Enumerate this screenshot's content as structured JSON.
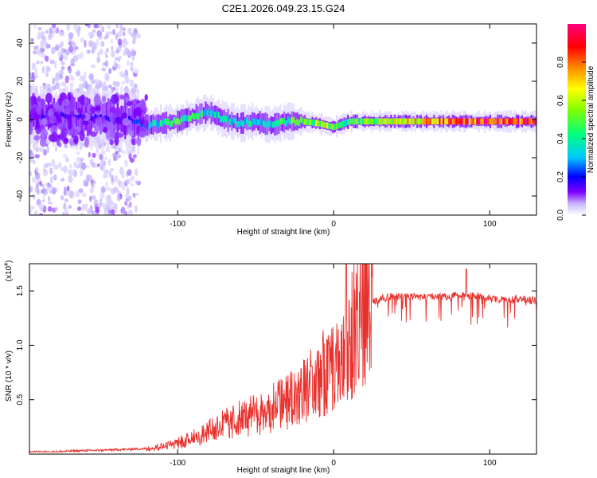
{
  "title": "C2E1.2026.049.23.15.G24",
  "colors": {
    "snr_line": "#e8302c",
    "axis": "#000000",
    "background": "#ffffff"
  },
  "chart_data": [
    {
      "type": "heatmap",
      "name": "spectrogram",
      "xlabel": "Height of straight line (km)",
      "ylabel": "Frequency (Hz)",
      "xlim": [
        -195,
        130
      ],
      "ylim": [
        -50,
        50
      ],
      "xticks": [
        -100,
        0,
        100
      ],
      "yticks": [
        -40,
        -20,
        0,
        20,
        40
      ],
      "xtick_labels": [
        "-100",
        "0",
        "100"
      ],
      "ytick_labels": [
        "-40",
        "-20",
        "0",
        "20",
        "40"
      ],
      "colorbar": {
        "label": "Normalized spectral amplitude",
        "range": [
          0,
          1
        ],
        "ticks": [
          0.0,
          0.2,
          0.4,
          0.6,
          0.8
        ],
        "tick_labels": [
          "0.0",
          "0.2",
          "0.4",
          "0.6",
          "0.8"
        ],
        "colors": [
          "#ffffff",
          "#b4a0ff",
          "#8000ff",
          "#0000ff",
          "#00c8ff",
          "#00ff80",
          "#80ff00",
          "#ffff00",
          "#ff8000",
          "#ff0000",
          "#ff00a0"
        ]
      },
      "ridge": [
        {
          "x": -195,
          "f": 2,
          "amp": 0.25
        },
        {
          "x": -170,
          "f": 2,
          "amp": 0.3
        },
        {
          "x": -150,
          "f": 1,
          "amp": 0.3
        },
        {
          "x": -130,
          "f": 0,
          "amp": 0.3
        },
        {
          "x": -120,
          "f": -3,
          "amp": 0.45
        },
        {
          "x": -110,
          "f": -2,
          "amp": 0.5
        },
        {
          "x": -100,
          "f": -1,
          "amp": 0.55
        },
        {
          "x": -90,
          "f": 2,
          "amp": 0.5
        },
        {
          "x": -80,
          "f": 4,
          "amp": 0.5
        },
        {
          "x": -70,
          "f": 0,
          "amp": 0.5
        },
        {
          "x": -60,
          "f": -2,
          "amp": 0.45
        },
        {
          "x": -50,
          "f": -1,
          "amp": 0.5
        },
        {
          "x": -40,
          "f": -3,
          "amp": 0.5
        },
        {
          "x": -30,
          "f": -1,
          "amp": 0.55
        },
        {
          "x": -20,
          "f": -1,
          "amp": 0.6
        },
        {
          "x": -10,
          "f": -2,
          "amp": 0.65
        },
        {
          "x": 0,
          "f": -4,
          "amp": 0.6
        },
        {
          "x": 10,
          "f": -1,
          "amp": 0.55
        },
        {
          "x": 20,
          "f": -1,
          "amp": 0.6
        },
        {
          "x": 40,
          "f": -1,
          "amp": 0.7
        },
        {
          "x": 60,
          "f": -1,
          "amp": 0.8
        },
        {
          "x": 80,
          "f": -1,
          "amp": 0.9
        },
        {
          "x": 100,
          "f": -1,
          "amp": 0.95
        },
        {
          "x": 120,
          "f": -1,
          "amp": 0.95
        },
        {
          "x": 130,
          "f": -1,
          "amp": 0.95
        }
      ]
    },
    {
      "type": "line",
      "name": "snr",
      "xlabel": "Height of straight line (km)",
      "ylabel": "SNR (10 * v/v)",
      "y_multiplier_label": "(x10",
      "y_multiplier_exp": "4",
      "y_multiplier_close": ")",
      "xlim": [
        -195,
        130
      ],
      "ylim": [
        0,
        17500
      ],
      "xticks": [
        -100,
        0,
        100
      ],
      "yticks": [
        5000,
        10000,
        15000
      ],
      "xtick_labels": [
        "-100",
        "0",
        "100"
      ],
      "ytick_labels": [
        "0.5",
        "1.0",
        "1.5"
      ],
      "series": [
        {
          "name": "SNR",
          "x": [
            -195,
            -180,
            -165,
            -150,
            -140,
            -130,
            -120,
            -110,
            -100,
            -95,
            -90,
            -85,
            -80,
            -75,
            -70,
            -65,
            -60,
            -55,
            -50,
            -45,
            -40,
            -35,
            -30,
            -25,
            -20,
            -15,
            -10,
            -5,
            0,
            5,
            8,
            10,
            12,
            15,
            20,
            25,
            30,
            40,
            50,
            60,
            70,
            80,
            90,
            100,
            110,
            120,
            130
          ],
          "values": [
            200,
            200,
            300,
            350,
            400,
            450,
            500,
            700,
            1000,
            1200,
            1500,
            1700,
            2100,
            2400,
            2700,
            3000,
            3200,
            3400,
            3600,
            3800,
            4200,
            4500,
            5000,
            5400,
            5800,
            6400,
            7000,
            7600,
            8000,
            8600,
            9200,
            10000,
            11000,
            12500,
            13500,
            14200,
            14600,
            14800,
            14800,
            14800,
            14800,
            14900,
            14800,
            14600,
            14500,
            14600,
            14400
          ]
        }
      ]
    }
  ]
}
